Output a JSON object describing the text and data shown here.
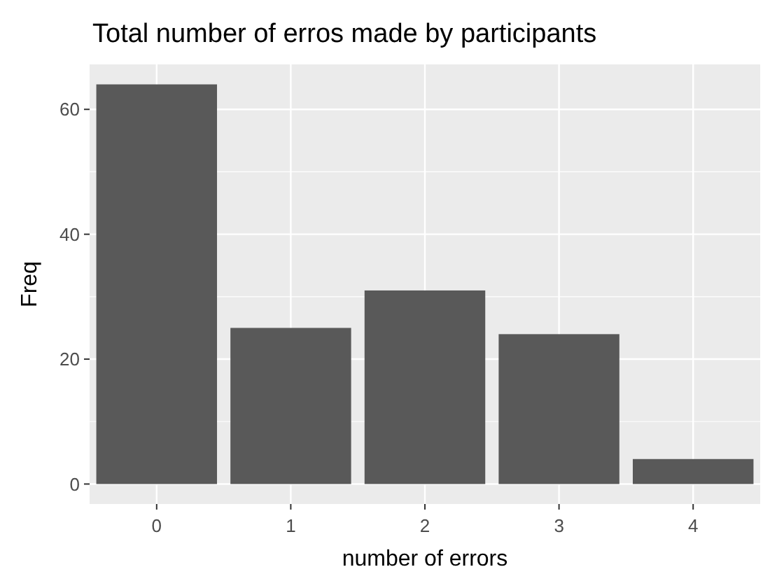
{
  "chart_data": {
    "type": "bar",
    "title": "Total number of erros made by participants",
    "xlabel": "number of errors",
    "ylabel": "Freq",
    "categories": [
      "0",
      "1",
      "2",
      "3",
      "4"
    ],
    "values": [
      64,
      25,
      31,
      24,
      4
    ],
    "color": "#595959",
    "ylim": [
      -3.2,
      67.2
    ],
    "yticks": [
      0,
      {
        "value": 10,
        "label": null
      },
      20,
      {
        "value": 30,
        "label": null
      },
      40,
      {
        "value": 50,
        "label": null
      },
      60
    ],
    "grid": true
  }
}
